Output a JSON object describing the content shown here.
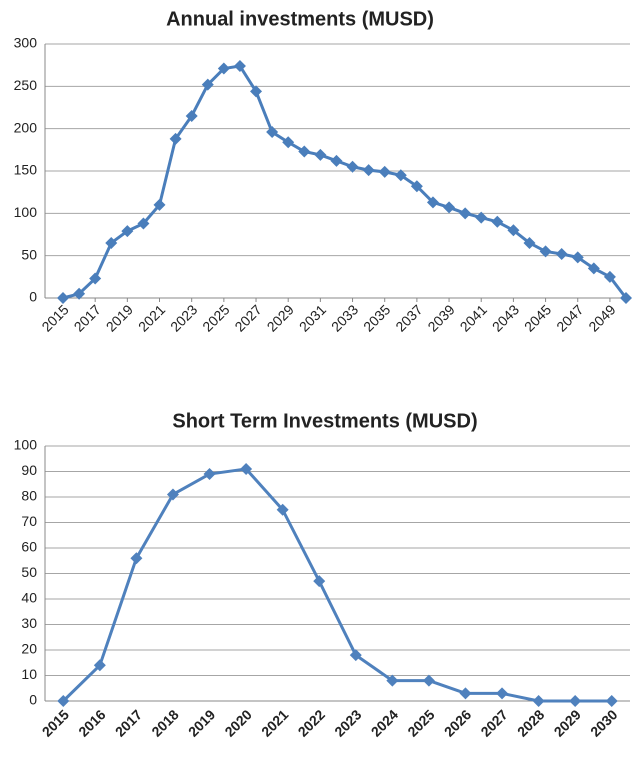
{
  "chart_data": [
    {
      "type": "line",
      "title": "Annual investments (MUSD)",
      "x": [
        2015,
        2016,
        2017,
        2018,
        2019,
        2020,
        2021,
        2022,
        2023,
        2024,
        2025,
        2026,
        2027,
        2028,
        2029,
        2030,
        2031,
        2032,
        2033,
        2034,
        2035,
        2036,
        2037,
        2038,
        2039,
        2040,
        2041,
        2042,
        2043,
        2044,
        2045,
        2046,
        2047,
        2048,
        2049,
        2050
      ],
      "values": [
        0,
        5,
        23,
        65,
        79,
        88,
        110,
        188,
        215,
        252,
        271,
        274,
        244,
        196,
        184,
        173,
        169,
        162,
        155,
        151,
        149,
        145,
        132,
        113,
        107,
        100,
        95,
        90,
        80,
        65,
        55,
        52,
        48,
        35,
        25,
        0
      ],
      "color": "#4a7ebb",
      "xlim": [
        2015,
        2050
      ],
      "xticks": [
        2015,
        2017,
        2019,
        2021,
        2023,
        2025,
        2027,
        2029,
        2031,
        2033,
        2035,
        2037,
        2039,
        2041,
        2043,
        2045,
        2047,
        2049
      ],
      "ylim": [
        0,
        300
      ],
      "yticks": [
        0,
        50,
        100,
        150,
        200,
        250,
        300
      ],
      "grid": true
    },
    {
      "type": "line",
      "title": "Short Term Investments (MUSD)",
      "categories": [
        "2015",
        "2016",
        "2017",
        "2018",
        "2019",
        "2020",
        "2021",
        "2022",
        "2023",
        "2024",
        "2025",
        "2026",
        "2027",
        "2028",
        "2029",
        "2030"
      ],
      "values": [
        0,
        14,
        56,
        81,
        89,
        91,
        75,
        47,
        18,
        8,
        8,
        3,
        3,
        0,
        0,
        0
      ],
      "color": "#4f81bd",
      "ylim": [
        0,
        100
      ],
      "yticks": [
        0,
        10,
        20,
        30,
        40,
        50,
        60,
        70,
        80,
        90,
        100
      ],
      "grid": true
    }
  ]
}
